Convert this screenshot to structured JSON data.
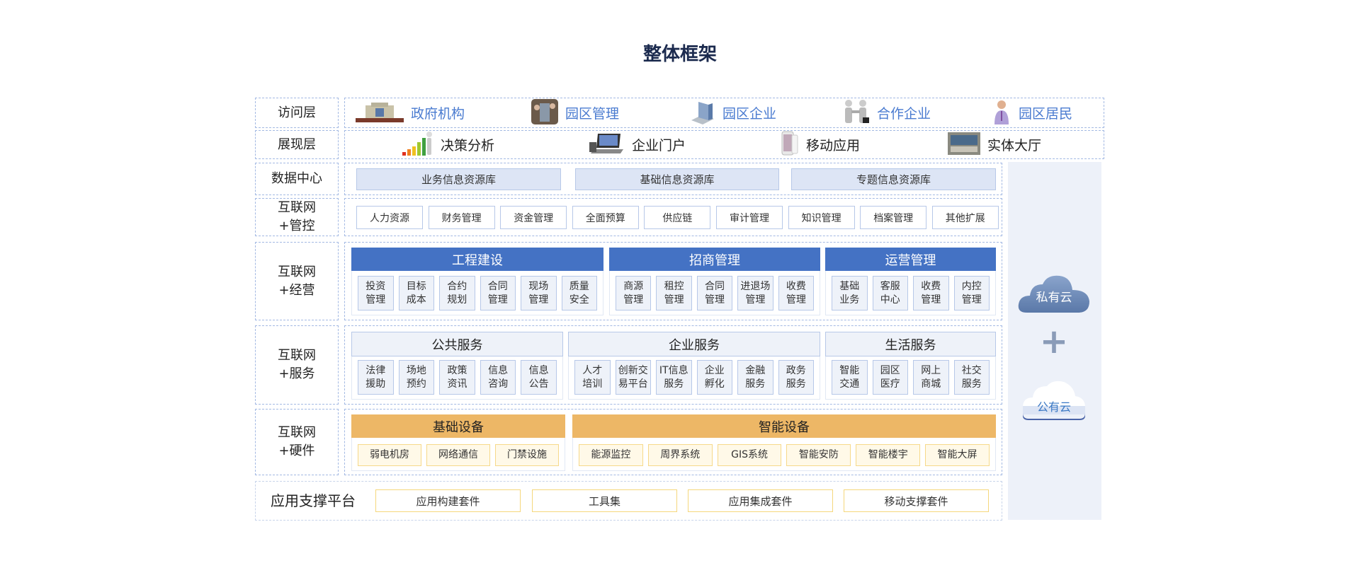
{
  "title": "整体框架",
  "colors": {
    "accent_blue": "#4472c4",
    "orange": "#edb766",
    "access_text": "#4a7bd0",
    "panel": "#edf1f9"
  },
  "access": {
    "label": "访问层",
    "items": [
      {
        "label": "政府机构",
        "icon": "government-building-icon"
      },
      {
        "label": "园区管理",
        "icon": "park-management-photo-icon"
      },
      {
        "label": "园区企业",
        "icon": "office-building-icon"
      },
      {
        "label": "合作企业",
        "icon": "handshake-icon"
      },
      {
        "label": "园区居民",
        "icon": "resident-person-icon"
      }
    ]
  },
  "presentation": {
    "label": "展现层",
    "items": [
      {
        "label": "决策分析",
        "icon": "growth-chart-icon"
      },
      {
        "label": "企业门户",
        "icon": "laptop-icon"
      },
      {
        "label": "移动应用",
        "icon": "mobile-phone-icon"
      },
      {
        "label": "实体大厅",
        "icon": "service-hall-icon"
      }
    ]
  },
  "data_center": {
    "label": "数据中心",
    "items": [
      "业务信息资源库",
      "基础信息资源库",
      "专题信息资源库"
    ]
  },
  "control": {
    "label": "互联网\n+管控",
    "items": [
      "人力资源",
      "财务管理",
      "资金管理",
      "全面预算",
      "供应链",
      "审计管理",
      "知识管理",
      "档案管理",
      "其他扩展"
    ]
  },
  "operation": {
    "label": "互联网\n+经营",
    "groups": [
      {
        "title": "工程建设",
        "items": [
          "投资\n管理",
          "目标\n成本",
          "合约\n规划",
          "合同\n管理",
          "现场\n管理",
          "质量\n安全"
        ]
      },
      {
        "title": "招商管理",
        "items": [
          "商源\n管理",
          "租控\n管理",
          "合同\n管理",
          "进退场\n管理",
          "收费\n管理"
        ]
      },
      {
        "title": "运营管理",
        "items": [
          "基础\n业务",
          "客服\n中心",
          "收费\n管理",
          "内控\n管理"
        ]
      }
    ]
  },
  "service": {
    "label": "互联网\n+服务",
    "groups": [
      {
        "title": "公共服务",
        "items": [
          "法律\n援助",
          "场地\n预约",
          "政策\n资讯",
          "信息\n咨询",
          "信息\n公告"
        ]
      },
      {
        "title": "企业服务",
        "items": [
          "人才\n培训",
          "创新交\n易平台",
          "IT信息\n服务",
          "企业\n孵化",
          "金融\n服务",
          "政务\n服务"
        ]
      },
      {
        "title": "生活服务",
        "items": [
          "智能\n交通",
          "园区\n医疗",
          "网上\n商城",
          "社交\n服务"
        ]
      }
    ]
  },
  "hardware": {
    "label": "互联网\n+硬件",
    "groups": [
      {
        "title": "基础设备",
        "items": [
          "弱电机房",
          "网络通信",
          "门禁设施"
        ]
      },
      {
        "title": "智能设备",
        "items": [
          "能源监控",
          "周界系统",
          "GIS系统",
          "智能安防",
          "智能楼宇",
          "智能大屏"
        ]
      }
    ]
  },
  "platform": {
    "label": "应用支撑平台",
    "items": [
      "应用构建套件",
      "工具集",
      "应用集成套件",
      "移动支撑套件"
    ]
  },
  "cloud": {
    "private": "私有云",
    "plus": "+",
    "public": "公有云"
  }
}
